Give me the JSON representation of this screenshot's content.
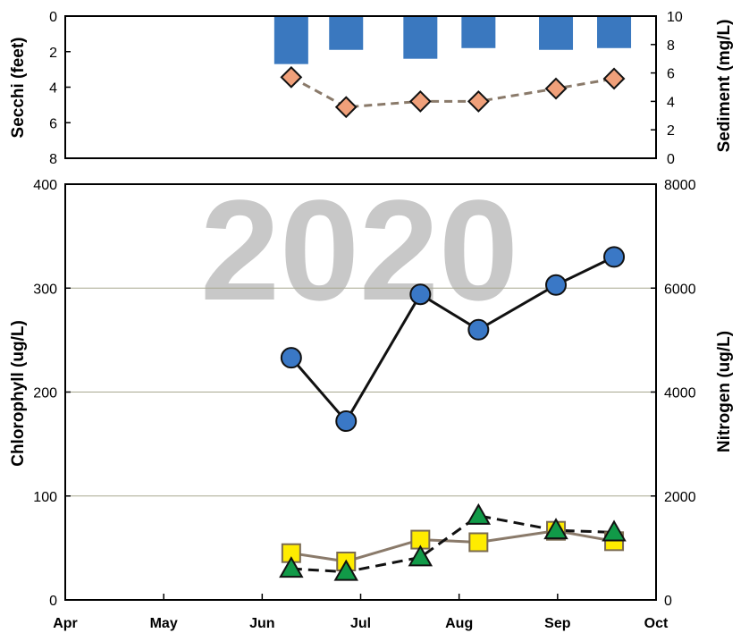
{
  "chart_data": [
    {
      "type": "bar+line",
      "panel": "top",
      "ylabel_left": "Secchi (feet)",
      "ylabel_right": "Sediment (mg/L)",
      "ylim_left": [
        0,
        8
      ],
      "ylim_left_inverted": true,
      "ylim_right": [
        0,
        10
      ],
      "yticks_left": [
        "0",
        "2",
        "4",
        "6",
        "8"
      ],
      "yticks_right": [
        "0",
        "2",
        "4",
        "6",
        "8",
        "10"
      ],
      "secchi_bars": {
        "x": [
          "2020-06-10",
          "2020-06-27",
          "2020-07-20",
          "2020-08-07",
          "2020-08-31",
          "2020-09-18"
        ],
        "values": [
          2.7,
          1.9,
          2.4,
          1.8,
          1.9,
          1.8
        ]
      },
      "sediment": {
        "x": [
          "2020-06-10",
          "2020-06-27",
          "2020-07-20",
          "2020-08-07",
          "2020-08-31",
          "2020-09-18"
        ],
        "values": [
          5.7,
          3.6,
          4.0,
          4.0,
          4.9,
          5.6
        ],
        "style": "dashed"
      }
    },
    {
      "type": "line",
      "panel": "bottom",
      "ylabel_left": "Chlorophyll (ug/L)",
      "ylabel_right": "Nitrogen (ug/L)",
      "ylim_left": [
        0,
        400
      ],
      "ylim_right": [
        0,
        8000
      ],
      "yticks_left": [
        "0",
        "100",
        "200",
        "300",
        "400"
      ],
      "yticks_right": [
        "0",
        "2000",
        "4000",
        "6000",
        "8000"
      ],
      "xticks": [
        "Apr",
        "May",
        "Jun",
        "Jul",
        "Aug",
        "Sep",
        "Oct"
      ],
      "grid": true,
      "series": [
        {
          "x": [
            "2020-06-10",
            "2020-06-27",
            "2020-07-20",
            "2020-08-07",
            "2020-08-31",
            "2020-09-18"
          ],
          "values": [
            233,
            172,
            294,
            260,
            303,
            330
          ],
          "marker": "circle",
          "axis": "left"
        },
        {
          "x": [
            "2020-06-10",
            "2020-06-27",
            "2020-07-20",
            "2020-08-07",
            "2020-08-31",
            "2020-09-18"
          ],
          "values": [
            900,
            740,
            1160,
            1110,
            1330,
            1130
          ],
          "marker": "square",
          "axis": "right"
        },
        {
          "x": [
            "2020-06-10",
            "2020-06-27",
            "2020-07-20",
            "2020-08-07",
            "2020-08-31",
            "2020-09-18"
          ],
          "values": [
            30,
            27,
            41,
            81,
            67,
            65
          ],
          "marker": "triangle",
          "axis": "left",
          "style": "dashed"
        }
      ],
      "watermark": "2020"
    }
  ],
  "colors": {
    "secchi_bar": "#3a78bf",
    "sediment_marker": "#f0a07a",
    "sediment_line": "#8a7a6a",
    "chl_marker": "#3a78c6",
    "chl_line": "#111111",
    "tn_marker": "#ffec00",
    "tn_line": "#8a7a6a",
    "tp_marker": "#119a48",
    "tp_line": "#111111",
    "grid": "#a8a890",
    "watermark": "#c8c8c8"
  }
}
